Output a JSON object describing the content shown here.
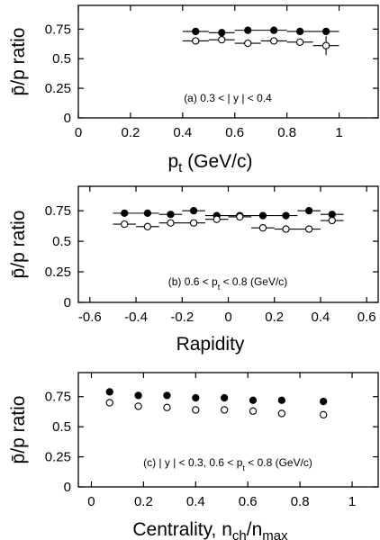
{
  "chart_data": [
    {
      "type": "scatter",
      "ylabel": "p̄/p ratio",
      "xlabel": "p_t (GeV/c)",
      "annotation": "(a) 0.3 < | y | < 0.4",
      "xlim": [
        0,
        1.15
      ],
      "ylim": [
        0,
        0.95
      ],
      "xticks": [
        0,
        0.2,
        0.4,
        0.6,
        0.8,
        1
      ],
      "xtick_labels": [
        "0",
        "0.2",
        "0.4",
        "0.6",
        "0.8",
        "1"
      ],
      "yticks": [
        0,
        0.25,
        0.5,
        0.75
      ],
      "ytick_labels": [
        "0",
        "0.25",
        "0.5",
        "0.75"
      ],
      "xerr": 0.05,
      "series": [
        {
          "marker": "filled",
          "x": [
            0.45,
            0.55,
            0.65,
            0.75,
            0.85,
            0.95
          ],
          "y": [
            0.73,
            0.72,
            0.74,
            0.74,
            0.73,
            0.73
          ],
          "yerr": [
            0.02,
            0.02,
            0.02,
            0.02,
            0.02,
            0.02
          ]
        },
        {
          "marker": "open",
          "x": [
            0.45,
            0.55,
            0.65,
            0.75,
            0.85,
            0.95
          ],
          "y": [
            0.65,
            0.66,
            0.63,
            0.65,
            0.64,
            0.61
          ],
          "yerr": [
            0.02,
            0.02,
            0.02,
            0.02,
            0.02,
            0.08
          ]
        }
      ]
    },
    {
      "type": "scatter",
      "ylabel": "p̄/p ratio",
      "xlabel": "Rapidity",
      "annotation": "(b) 0.6 < p_t < 0.8 (GeV/c)",
      "xlim": [
        -0.65,
        0.65
      ],
      "ylim": [
        0,
        0.95
      ],
      "xticks": [
        -0.6,
        -0.4,
        -0.2,
        0,
        0.2,
        0.4,
        0.6
      ],
      "xtick_labels": [
        "-0.6",
        "-0.4",
        "-0.2",
        "0",
        "0.2",
        "0.4",
        "0.6"
      ],
      "yticks": [
        0,
        0.25,
        0.5,
        0.75
      ],
      "ytick_labels": [
        "0",
        "0.25",
        "0.5",
        "0.75"
      ],
      "xerr": 0.05,
      "series": [
        {
          "marker": "filled",
          "x": [
            -0.45,
            -0.35,
            -0.25,
            -0.15,
            -0.05,
            0.05,
            0.15,
            0.25,
            0.35,
            0.45
          ],
          "y": [
            0.73,
            0.73,
            0.72,
            0.75,
            0.71,
            0.71,
            0.71,
            0.71,
            0.75,
            0.72
          ],
          "yerr": [
            0.015,
            0.015,
            0.015,
            0.015,
            0.015,
            0.015,
            0.015,
            0.015,
            0.015,
            0.015
          ]
        },
        {
          "marker": "open",
          "x": [
            -0.45,
            -0.35,
            -0.25,
            -0.15,
            -0.05,
            0.05,
            0.15,
            0.25,
            0.35,
            0.45
          ],
          "y": [
            0.64,
            0.62,
            0.65,
            0.65,
            0.68,
            0.7,
            0.61,
            0.6,
            0.6,
            0.67
          ],
          "yerr": [
            0.015,
            0.015,
            0.015,
            0.015,
            0.015,
            0.015,
            0.015,
            0.015,
            0.015,
            0.015
          ]
        }
      ]
    },
    {
      "type": "scatter",
      "ylabel": "p̄/p ratio",
      "xlabel": "Centrality, n_ch/n_max",
      "annotation": "(c) | y | < 0.3,  0.6 < p_t < 0.8 (GeV/c)",
      "xlim": [
        -0.05,
        1.1
      ],
      "ylim": [
        0,
        0.95
      ],
      "xticks": [
        0,
        0.2,
        0.4,
        0.6,
        0.8,
        1
      ],
      "xtick_labels": [
        "0",
        "0.2",
        "0.4",
        "0.6",
        "0.8",
        "1"
      ],
      "yticks": [
        0,
        0.25,
        0.5,
        0.75
      ],
      "ytick_labels": [
        "0",
        "0.25",
        "0.5",
        "0.75"
      ],
      "xerr": 0,
      "series": [
        {
          "marker": "filled",
          "x": [
            0.07,
            0.18,
            0.29,
            0.4,
            0.51,
            0.62,
            0.73,
            0.89
          ],
          "y": [
            0.79,
            0.76,
            0.76,
            0.74,
            0.74,
            0.72,
            0.72,
            0.71
          ],
          "yerr": [
            0,
            0,
            0,
            0,
            0,
            0,
            0,
            0
          ]
        },
        {
          "marker": "open",
          "x": [
            0.07,
            0.18,
            0.29,
            0.4,
            0.51,
            0.62,
            0.73,
            0.89
          ],
          "y": [
            0.7,
            0.67,
            0.66,
            0.64,
            0.64,
            0.63,
            0.61,
            0.6
          ],
          "yerr": [
            0.03,
            0,
            0,
            0,
            0,
            0,
            0,
            0
          ]
        }
      ]
    }
  ]
}
